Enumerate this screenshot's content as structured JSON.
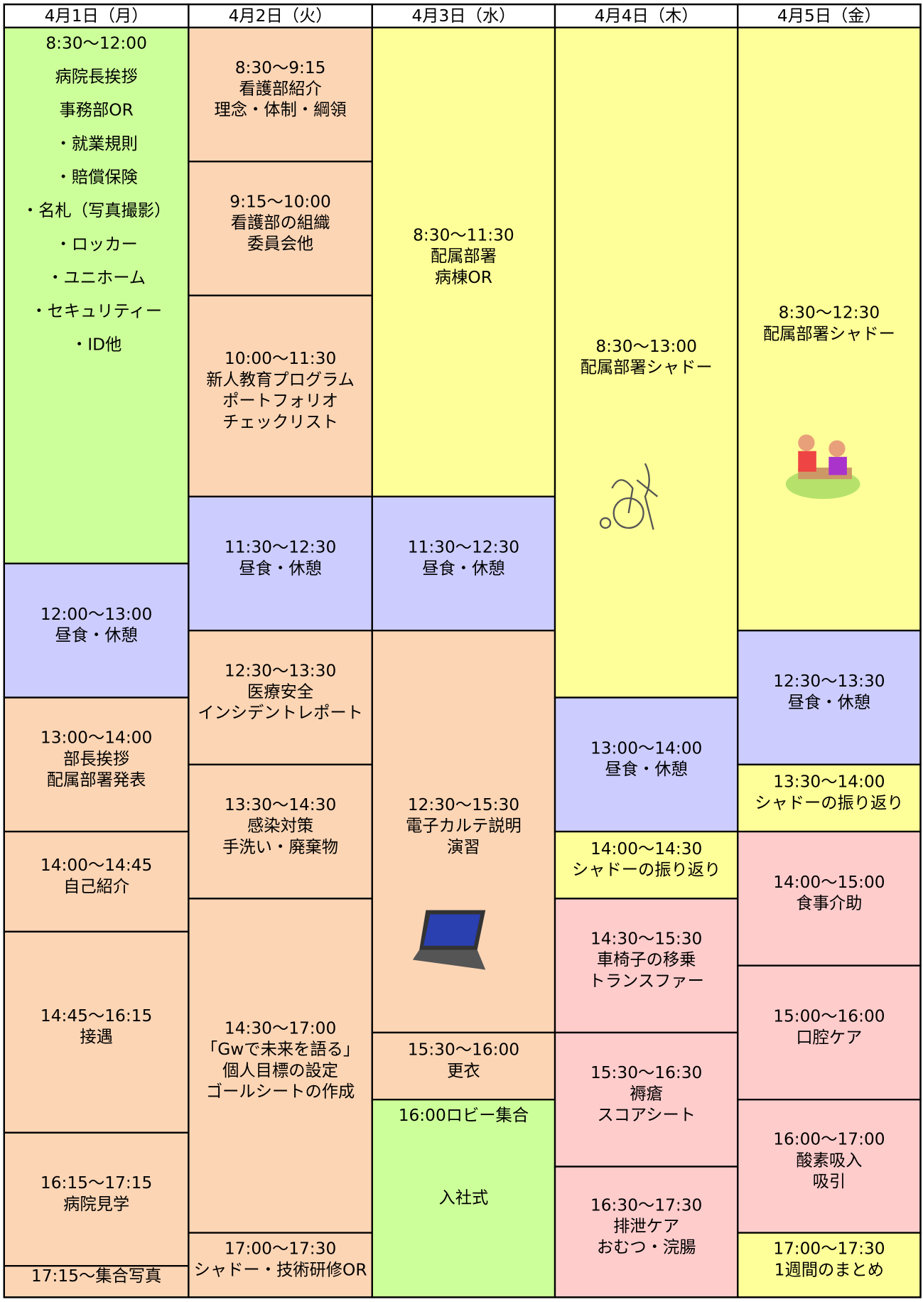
{
  "days": [
    {
      "header": "4月1日（月）",
      "cells": [
        {
          "color": "#ccff99",
          "lines": [
            "8:30〜12:00",
            "病院長挨拶",
            "事務部OR",
            "・就業規則",
            "・賠償保険",
            "・名札（写真撮影）",
            "・ロッカー",
            "・ユニホーム",
            "・セキュリティー",
            "・ID他"
          ]
        },
        {
          "color": "#ccccff",
          "lines": [
            "12:00〜13:00",
            "昼食・休憩"
          ]
        },
        {
          "color": "#fcd5b5",
          "lines": [
            "13:00〜14:00",
            "部長挨拶",
            "配属部署発表"
          ]
        },
        {
          "color": "#fcd5b5",
          "lines": [
            "14:00〜14:45",
            "自己紹介"
          ]
        },
        {
          "color": "#fcd5b5",
          "lines": [
            "14:45〜16:15",
            "接遇"
          ]
        },
        {
          "color": "#fcd5b5",
          "lines": [
            "16:15〜17:15",
            "病院見学"
          ]
        },
        {
          "color": "#fcd5b5",
          "lines": [
            "17:15〜集合写真"
          ]
        }
      ]
    },
    {
      "header": "4月2日（火）",
      "cells": [
        {
          "color": "#fcd5b5",
          "lines": [
            "8:30〜9:15",
            "看護部紹介",
            "理念・体制・綱領"
          ]
        },
        {
          "color": "#fcd5b5",
          "lines": [
            "9:15〜10:00",
            "看護部の組織",
            "委員会他"
          ]
        },
        {
          "color": "#fcd5b5",
          "lines": [
            "10:00〜11:30",
            "新人教育プログラム",
            "ポートフォリオ",
            "チェックリスト"
          ]
        },
        {
          "color": "#ccccff",
          "lines": [
            "11:30〜12:30",
            "昼食・休憩"
          ]
        },
        {
          "color": "#fcd5b5",
          "lines": [
            "12:30〜13:30",
            "医療安全",
            "インシデントレポート"
          ]
        },
        {
          "color": "#fcd5b5",
          "lines": [
            "13:30〜14:30",
            "感染対策",
            "手洗い・廃棄物"
          ]
        },
        {
          "color": "#fcd5b5",
          "lines": [
            "14:30〜17:00",
            "「Gwで未来を語る」",
            "個人目標の設定",
            "ゴールシートの作成"
          ]
        },
        {
          "color": "#fcd5b5",
          "lines": [
            "17:00〜17:30",
            "シャドー・技術研修OR"
          ]
        }
      ]
    },
    {
      "header": "4月3日（水）",
      "cells": [
        {
          "color": "#ffff99",
          "lines": [
            "8:30〜11:30",
            "配属部署",
            "病棟OR"
          ]
        },
        {
          "color": "#ccccff",
          "lines": [
            "11:30〜12:30",
            "昼食・休憩"
          ]
        },
        {
          "color": "#fcd5b5",
          "lines": [
            "12:30〜15:30",
            "電子カルテ説明",
            "演習"
          ]
        },
        {
          "color": "#fcd5b5",
          "lines": [
            "15:30〜16:00",
            "更衣"
          ]
        },
        {
          "color": "#ccff99",
          "lines": [
            "16:00ロビー集合",
            "入社式"
          ]
        }
      ]
    },
    {
      "header": "4月4日（木）",
      "cells": [
        {
          "color": "#ffff99",
          "lines": [
            "8:30〜13:00",
            "配属部署シャドー"
          ]
        },
        {
          "color": "#ccccff",
          "lines": [
            "13:00〜14:00",
            "昼食・休憩"
          ]
        },
        {
          "color": "#ffff99",
          "lines": [
            "14:00〜14:30",
            "シャドーの振り返り"
          ]
        },
        {
          "color": "#ffcccc",
          "lines": [
            "14:30〜15:30",
            "車椅子の移乗",
            "トランスファー"
          ]
        },
        {
          "color": "#ffcccc",
          "lines": [
            "15:30〜16:30",
            "褥瘡",
            "スコアシート"
          ]
        },
        {
          "color": "#ffcccc",
          "lines": [
            "16:30〜17:30",
            "排泄ケア",
            "おむつ・浣腸"
          ]
        }
      ]
    },
    {
      "header": "4月5日（金）",
      "cells": [
        {
          "color": "#ffff99",
          "lines": [
            "8:30〜12:30",
            "配属部署シャドー"
          ]
        },
        {
          "color": "#ccccff",
          "lines": [
            "12:30〜13:30",
            "昼食・休憩"
          ]
        },
        {
          "color": "#ffff99",
          "lines": [
            "13:30〜14:00",
            "シャドーの振り返り"
          ]
        },
        {
          "color": "#ffcccc",
          "lines": [
            "14:00〜15:00",
            "食事介助"
          ]
        },
        {
          "color": "#ffcccc",
          "lines": [
            "15:00〜16:00",
            "口腔ケア"
          ]
        },
        {
          "color": "#ffcccc",
          "lines": [
            "16:00〜17:00",
            "酸素吸入",
            "吸引"
          ]
        },
        {
          "color": "#ffff99",
          "lines": [
            "17:00〜17:30",
            "1週間のまとめ"
          ]
        }
      ]
    }
  ]
}
